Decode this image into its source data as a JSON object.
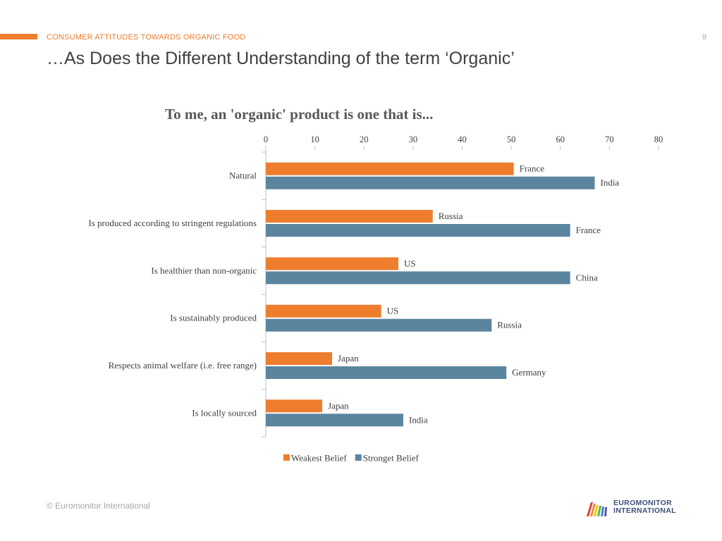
{
  "header": {
    "section_label": "CONSUMER ATTITUDES TOWARDS ORGANIC FOOD",
    "page_number": "9",
    "title": "…As Does the Different Understanding of the term ‘Organic’"
  },
  "footer": {
    "copyright": "© Euromonitor International"
  },
  "logo": {
    "line1": "EUROMONITOR",
    "line2": "INTERNATIONAL",
    "icon": "rainbow-arch-icon"
  },
  "colors": {
    "accent": "#ee7d2d",
    "weakest": "#ee7d2d",
    "strongest": "#5b849f",
    "text": "#404040",
    "axis": "#bfbfbf",
    "muted": "#a6a6a6",
    "logo_text": "#3d4f79"
  },
  "chart_data": {
    "type": "bar",
    "orientation": "horizontal",
    "title": "To me, an 'organic' product is one that is...",
    "xlim": [
      0,
      80
    ],
    "x_ticks": [
      "0",
      "10",
      "20",
      "30",
      "40",
      "50",
      "60",
      "70",
      "80"
    ],
    "x_axis_position": "top",
    "grid": false,
    "legend_position": "bottom",
    "categories": [
      "Natural",
      "Is produced according to stringent regulations",
      "Is healthier than non-organic",
      "Is sustainably produced",
      "Respects animal welfare (i.e. free range)",
      "Is locally sourced"
    ],
    "series": [
      {
        "name": "Weakest Belief",
        "values": [
          50.5,
          34,
          27,
          23.5,
          13.5,
          11.5
        ],
        "labels": [
          "France",
          "Russia",
          "US",
          "US",
          "Japan",
          "Japan"
        ]
      },
      {
        "name": "Stronget Belief",
        "values": [
          67,
          62,
          62,
          46,
          49,
          28
        ],
        "labels": [
          "India",
          "France",
          "China",
          "Russia",
          "Germany",
          "India"
        ]
      }
    ]
  }
}
